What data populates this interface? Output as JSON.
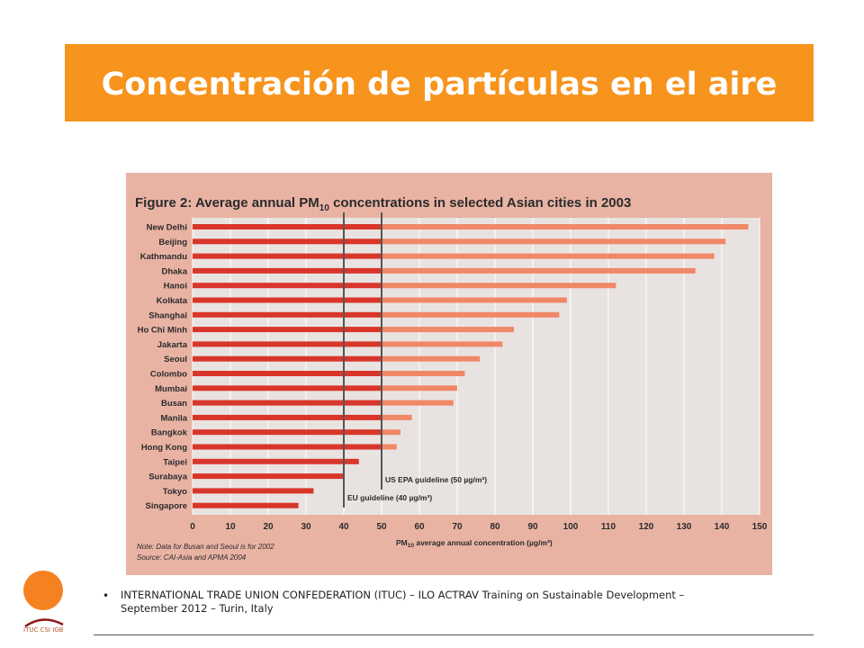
{
  "slide": {
    "title": "Concentración de partículas en el aire",
    "footer_text": "INTERNATIONAL TRADE UNION CONFEDERATION (ITUC) – ILO ACTRAV Training on Sustainable Development – September 2012 – Turin, Italy",
    "bullet": "•",
    "logo_label": "ITUC CSI IGB",
    "colors": {
      "title_bg": "#f7941d",
      "chart_bg": "#e9b3a4",
      "bar_dark": "#d9362b",
      "bar_light": "#f08868",
      "logo_orange": "#f58220",
      "logo_red": "#8b1a1a"
    }
  },
  "chart_data": {
    "type": "bar",
    "orientation": "horizontal",
    "title_prefix": "Figure 2: Average annual PM",
    "title_sub": "10",
    "title_suffix": " concentrations in selected Asian cities in 2003",
    "categories": [
      "New Delhi",
      "Beijing",
      "Kathmandu",
      "Dhaka",
      "Hanoi",
      "Kolkata",
      "Shanghai",
      "Ho Chi Minh",
      "Jakarta",
      "Seoul",
      "Colombo",
      "Mumbai",
      "Busan",
      "Manila",
      "Bangkok",
      "Hong Kong",
      "Taipei",
      "Surabaya",
      "Tokyo",
      "Singapore"
    ],
    "values": [
      147,
      141,
      138,
      133,
      112,
      99,
      97,
      85,
      82,
      76,
      72,
      70,
      69,
      58,
      55,
      54,
      44,
      40,
      32,
      28
    ],
    "xlim": [
      0,
      150
    ],
    "xticks": [
      "0",
      "10",
      "20",
      "30",
      "40",
      "50",
      "60",
      "70",
      "80",
      "90",
      "100",
      "110",
      "120",
      "130",
      "140",
      "150"
    ],
    "xlabel_prefix": "PM",
    "xlabel_sub": "10",
    "xlabel_suffix": " average annual concentration (µg/m³)",
    "reference_lines": [
      {
        "value": 40,
        "label": "EU guideline (40 µg/m³)"
      },
      {
        "value": 50,
        "label": "US EPA guideline (50 µg/m³)"
      }
    ],
    "notes": [
      "Note: Data for Busan and Seoul is for 2002",
      "Source: CAI-Asia and APMA 2004"
    ],
    "grid": true
  }
}
